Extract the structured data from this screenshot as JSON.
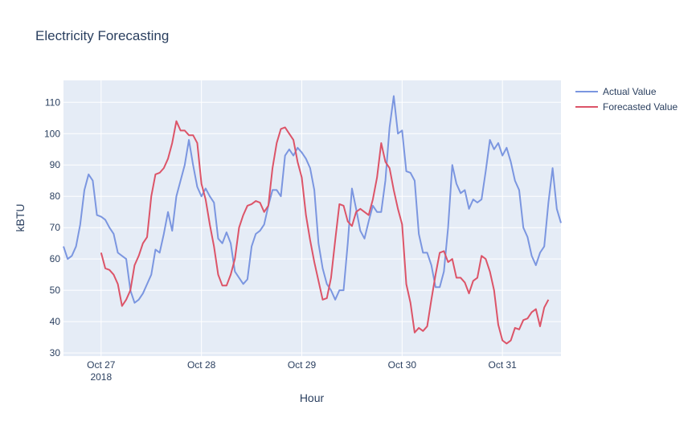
{
  "chart_data": {
    "type": "line",
    "title": "Electricity Forecasting",
    "xlabel": "Hour",
    "ylabel": "kBTU",
    "x_range": [
      "2018-10-26T15:00",
      "2018-10-31T14:00"
    ],
    "ylim": [
      29,
      117
    ],
    "y_ticks": [
      30,
      40,
      50,
      60,
      70,
      80,
      90,
      100,
      110
    ],
    "x_ticks": [
      {
        "date": "2018-10-27T00:00",
        "label": "Oct 27",
        "sublabel": "2018"
      },
      {
        "date": "2018-10-28T00:00",
        "label": "Oct 28",
        "sublabel": ""
      },
      {
        "date": "2018-10-29T00:00",
        "label": "Oct 29",
        "sublabel": ""
      },
      {
        "date": "2018-10-30T00:00",
        "label": "Oct 30",
        "sublabel": ""
      },
      {
        "date": "2018-10-31T00:00",
        "label": "Oct 31",
        "sublabel": ""
      }
    ],
    "grid": true,
    "legend": "top-right",
    "series": [
      {
        "name": "Actual Value",
        "color": "#7b96e0",
        "start": "2018-10-26T15:00",
        "step_hours": 1,
        "values": [
          64,
          60,
          61,
          64,
          71,
          82,
          87,
          85,
          74,
          73.5,
          72.5,
          70,
          68,
          62,
          61,
          60,
          50,
          46,
          47,
          49,
          52,
          55,
          63,
          62,
          68,
          75,
          69,
          80,
          85,
          90,
          98,
          90,
          83,
          80,
          82.5,
          80,
          78,
          66.5,
          65,
          68.5,
          65,
          56,
          54,
          52,
          53.5,
          64,
          68,
          69,
          71,
          77,
          82,
          82,
          80,
          93,
          95,
          93,
          95.5,
          94,
          92,
          89,
          82,
          65,
          57,
          52,
          50,
          47,
          50,
          50,
          65,
          82.5,
          76,
          69,
          66.5,
          72,
          77,
          75,
          75,
          85,
          102,
          112,
          100,
          101,
          88,
          87.5,
          85,
          68,
          62,
          62,
          58,
          51,
          51,
          56,
          70,
          90,
          84,
          81,
          82,
          76,
          79,
          78,
          79,
          88,
          98,
          95,
          97,
          93,
          95.5,
          91,
          85,
          82,
          70,
          67,
          61,
          58,
          62,
          64,
          78,
          89,
          76,
          71.5
        ]
      },
      {
        "name": "Forecasted Value",
        "color": "#dc5468",
        "start": "2018-10-27T00:00",
        "step_hours": 1,
        "values": [
          62,
          57,
          56.5,
          55,
          52,
          45,
          47,
          50,
          58,
          61,
          65,
          67,
          80,
          87,
          87.5,
          89,
          92,
          97,
          104,
          101,
          101,
          99.5,
          99.5,
          97,
          84,
          79,
          71,
          64,
          55,
          51.5,
          51.5,
          55,
          60,
          70,
          74,
          77,
          77.5,
          78.5,
          78,
          75,
          77,
          89,
          97,
          101.5,
          102,
          100,
          98,
          91,
          86,
          74,
          66,
          59,
          53,
          47,
          47.5,
          54,
          66,
          77.5,
          77,
          72,
          70.5,
          75,
          76,
          75,
          74,
          79,
          86,
          97,
          91,
          89,
          82,
          76,
          71,
          52,
          46,
          36.5,
          38,
          37,
          38.5,
          47,
          55,
          62,
          62.5,
          59,
          60,
          54,
          54,
          52.5,
          49,
          53,
          54,
          61,
          60,
          56,
          50,
          39,
          34,
          33,
          34,
          38,
          37.5,
          40.5,
          41,
          43,
          44,
          38.5,
          44.5,
          47
        ]
      }
    ]
  }
}
